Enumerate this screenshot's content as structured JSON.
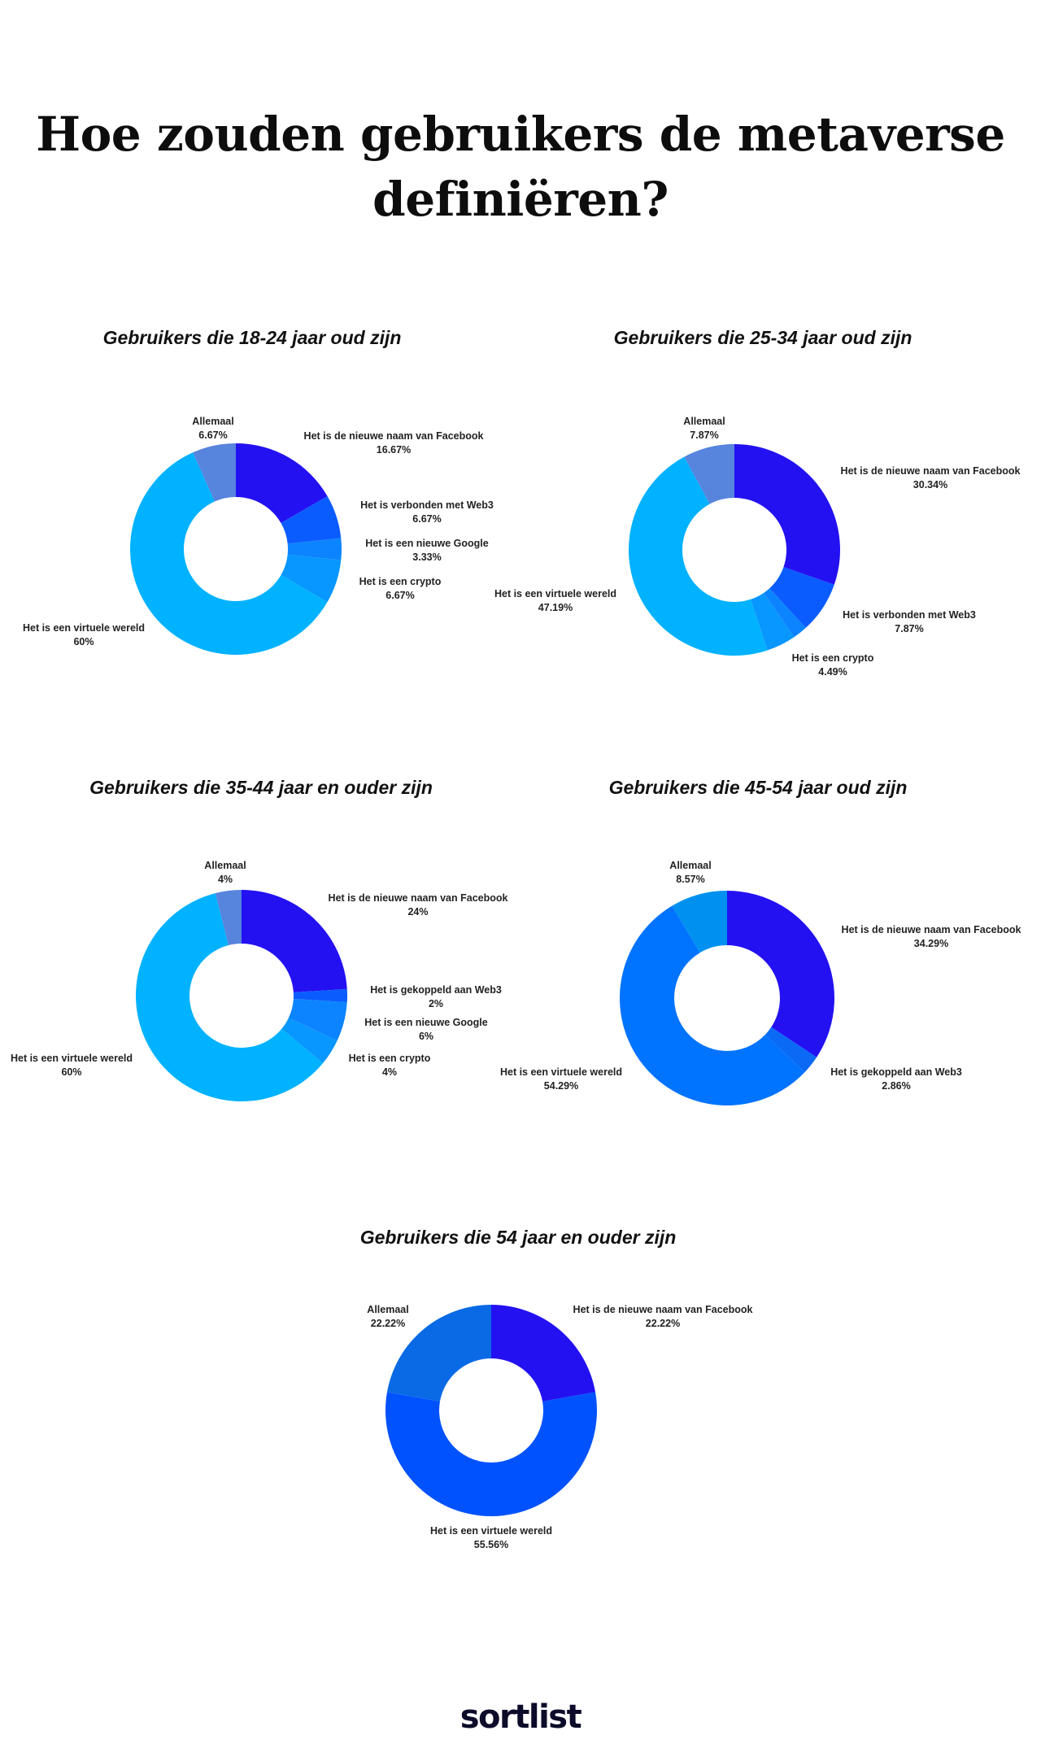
{
  "page": {
    "title_lines": [
      "Hoe zouden gebruikers de metaverse",
      "definiëren?"
    ],
    "brand": "sortlist"
  },
  "colors": {
    "facebook": "#2311f2",
    "web3": "#0a5cff",
    "web3_alt": "#0a6af5",
    "google": "#0c84ff",
    "crypto": "#0896ff",
    "virtual": "#00b2ff",
    "virtual_alt": "#0073ff",
    "virtual_alt2": "#0052ff",
    "allemaal": "#5784dd",
    "allemaal_alt": "#0091f0",
    "allemaal_alt2": "#0a6ae6"
  },
  "chart_data": [
    {
      "type": "pie",
      "title": "Gebruikers die 18-24 jaar oud zijn",
      "series": [
        {
          "name": "Het is de nieuwe naam van Facebook",
          "value": 16.67,
          "label": "16.67%",
          "color": "#2311f2"
        },
        {
          "name": "Het is verbonden met Web3",
          "value": 6.67,
          "label": "6.67%",
          "color": "#0a5cff"
        },
        {
          "name": "Het is een nieuwe Google",
          "value": 3.33,
          "label": "3.33%",
          "color": "#0c84ff"
        },
        {
          "name": "Het is een crypto",
          "value": 6.67,
          "label": "6.67%",
          "color": "#0896ff"
        },
        {
          "name": "Het is een virtuele wereld",
          "value": 60,
          "label": "60%",
          "color": "#00b2ff"
        },
        {
          "name": "Allemaal",
          "value": 6.67,
          "label": "6.67%",
          "color": "#5784dd"
        }
      ]
    },
    {
      "type": "pie",
      "title": "Gebruikers die 25-34 jaar oud zijn",
      "series": [
        {
          "name": "Het is de nieuwe naam van Facebook",
          "value": 30.34,
          "label": "30.34%",
          "color": "#2311f2"
        },
        {
          "name": "Het is verbonden met Web3",
          "value": 7.87,
          "label": "7.87%",
          "color": "#0a5cff"
        },
        {
          "name": "",
          "value": 2.24,
          "label": "",
          "color": "#0c84ff"
        },
        {
          "name": "Het is een crypto",
          "value": 4.49,
          "label": "4.49%",
          "color": "#0896ff"
        },
        {
          "name": "Het is een virtuele wereld",
          "value": 47.19,
          "label": "47.19%",
          "color": "#00b2ff"
        },
        {
          "name": "Allemaal",
          "value": 7.87,
          "label": "7.87%",
          "color": "#5784dd"
        }
      ]
    },
    {
      "type": "pie",
      "title": "Gebruikers die 35-44 jaar en ouder zijn",
      "series": [
        {
          "name": "Het is de nieuwe naam van Facebook",
          "value": 24,
          "label": "24%",
          "color": "#2311f2"
        },
        {
          "name": "Het is gekoppeld aan Web3",
          "value": 2,
          "label": "2%",
          "color": "#0a5cff"
        },
        {
          "name": "Het is een nieuwe Google",
          "value": 6,
          "label": "6%",
          "color": "#0c84ff"
        },
        {
          "name": "Het is een crypto",
          "value": 4,
          "label": "4%",
          "color": "#0896ff"
        },
        {
          "name": "Het is een virtuele wereld",
          "value": 60,
          "label": "60%",
          "color": "#00b2ff"
        },
        {
          "name": "Allemaal",
          "value": 4,
          "label": "4%",
          "color": "#5784dd"
        }
      ]
    },
    {
      "type": "pie",
      "title": "Gebruikers die 45-54 jaar oud zijn",
      "series": [
        {
          "name": "Het is de nieuwe naam van Facebook",
          "value": 34.29,
          "label": "34.29%",
          "color": "#2311f2"
        },
        {
          "name": "Het is gekoppeld aan Web3",
          "value": 2.86,
          "label": "2.86%",
          "color": "#0a6af5"
        },
        {
          "name": "Het is een virtuele wereld",
          "value": 54.29,
          "label": "54.29%",
          "color": "#0073ff"
        },
        {
          "name": "Allemaal",
          "value": 8.57,
          "label": "8.57%",
          "color": "#0091f0"
        }
      ]
    },
    {
      "type": "pie",
      "title": "Gebruikers die 54 jaar en ouder zijn",
      "series": [
        {
          "name": "Het is de nieuwe naam van Facebook",
          "value": 22.22,
          "label": "22.22%",
          "color": "#2311f2"
        },
        {
          "name": "Het is een virtuele wereld",
          "value": 55.56,
          "label": "55.56%",
          "color": "#0052ff"
        },
        {
          "name": "Allemaal",
          "value": 22.22,
          "label": "22.22%",
          "color": "#0a6ae6"
        }
      ]
    }
  ]
}
